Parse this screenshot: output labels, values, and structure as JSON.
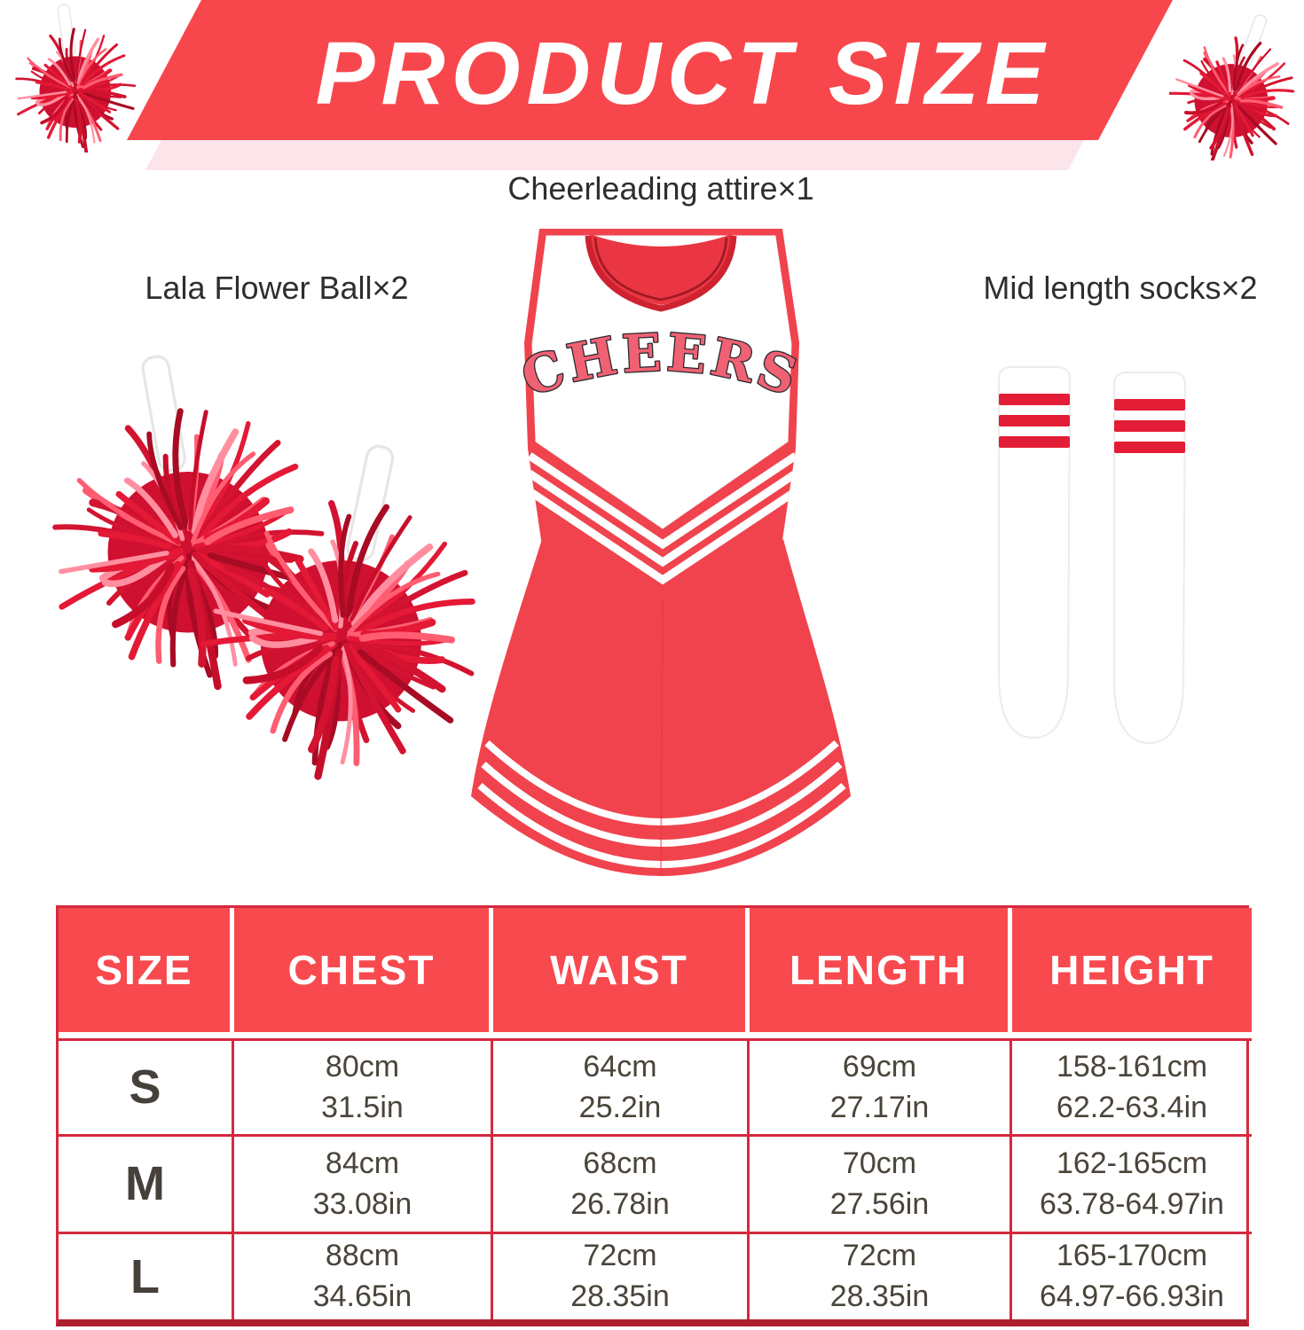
{
  "banner": {
    "title": "PRODUCT SIZE"
  },
  "products": {
    "attire": {
      "label": "Cheerleading attire×1",
      "jersey_text": "CHEERS"
    },
    "pompoms": {
      "label": "Lala Flower Ball×2"
    },
    "socks": {
      "label": "Mid length socks×2"
    }
  },
  "size_table": {
    "columns": [
      "SIZE",
      "CHEST",
      "WAIST",
      "LENGTH",
      "HEIGHT"
    ],
    "rows": [
      {
        "size": "S",
        "chest": [
          "80cm",
          "31.5in"
        ],
        "waist": [
          "64cm",
          "25.2in"
        ],
        "length": [
          "69cm",
          "27.17in"
        ],
        "height": [
          "158-161cm",
          "62.2-63.4in"
        ]
      },
      {
        "size": "M",
        "chest": [
          "84cm",
          "33.08in"
        ],
        "waist": [
          "68cm",
          "26.78in"
        ],
        "length": [
          "70cm",
          "27.56in"
        ],
        "height": [
          "162-165cm",
          "63.78-64.97in"
        ]
      },
      {
        "size": "L",
        "chest": [
          "88cm",
          "34.65in"
        ],
        "waist": [
          "72cm",
          "28.35in"
        ],
        "length": [
          "72cm",
          "28.35in"
        ],
        "height": [
          "165-170cm",
          "64.97-66.93in"
        ]
      }
    ]
  },
  "colors": {
    "banner_red": "#f8474c",
    "table_header_red": "#f8494e",
    "table_border_red": "#d5293d",
    "dress_red": "#f0434d",
    "sock_stripe_red": "#e31d35",
    "banner_shadow_pink": "#fbe4ea"
  }
}
